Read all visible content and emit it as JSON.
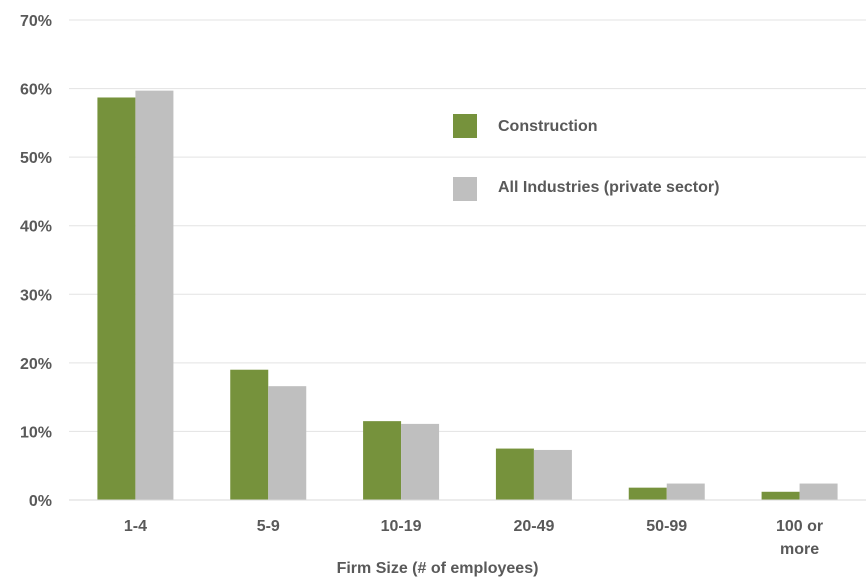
{
  "chart_data": {
    "type": "bar",
    "xlabel": "Firm Size (# of employees)",
    "ylabel": "",
    "ylim": [
      0,
      70
    ],
    "grid": true,
    "legend_position": "top-right",
    "y_ticks": [
      "0%",
      "10%",
      "20%",
      "30%",
      "40%",
      "50%",
      "60%",
      "70%"
    ],
    "categories": [
      [
        "1-4"
      ],
      [
        "5-9"
      ],
      [
        "10-19"
      ],
      [
        "20-49"
      ],
      [
        "50-99"
      ],
      [
        "100 or",
        "more"
      ]
    ],
    "series": [
      {
        "name": "Construction",
        "color": "#76923c",
        "values": [
          58.7,
          19.0,
          11.5,
          7.5,
          1.8,
          1.2
        ]
      },
      {
        "name": "All Industries (private sector)",
        "color": "#bfbfbf",
        "values": [
          59.7,
          16.6,
          11.1,
          7.3,
          2.4,
          2.4
        ]
      }
    ]
  }
}
